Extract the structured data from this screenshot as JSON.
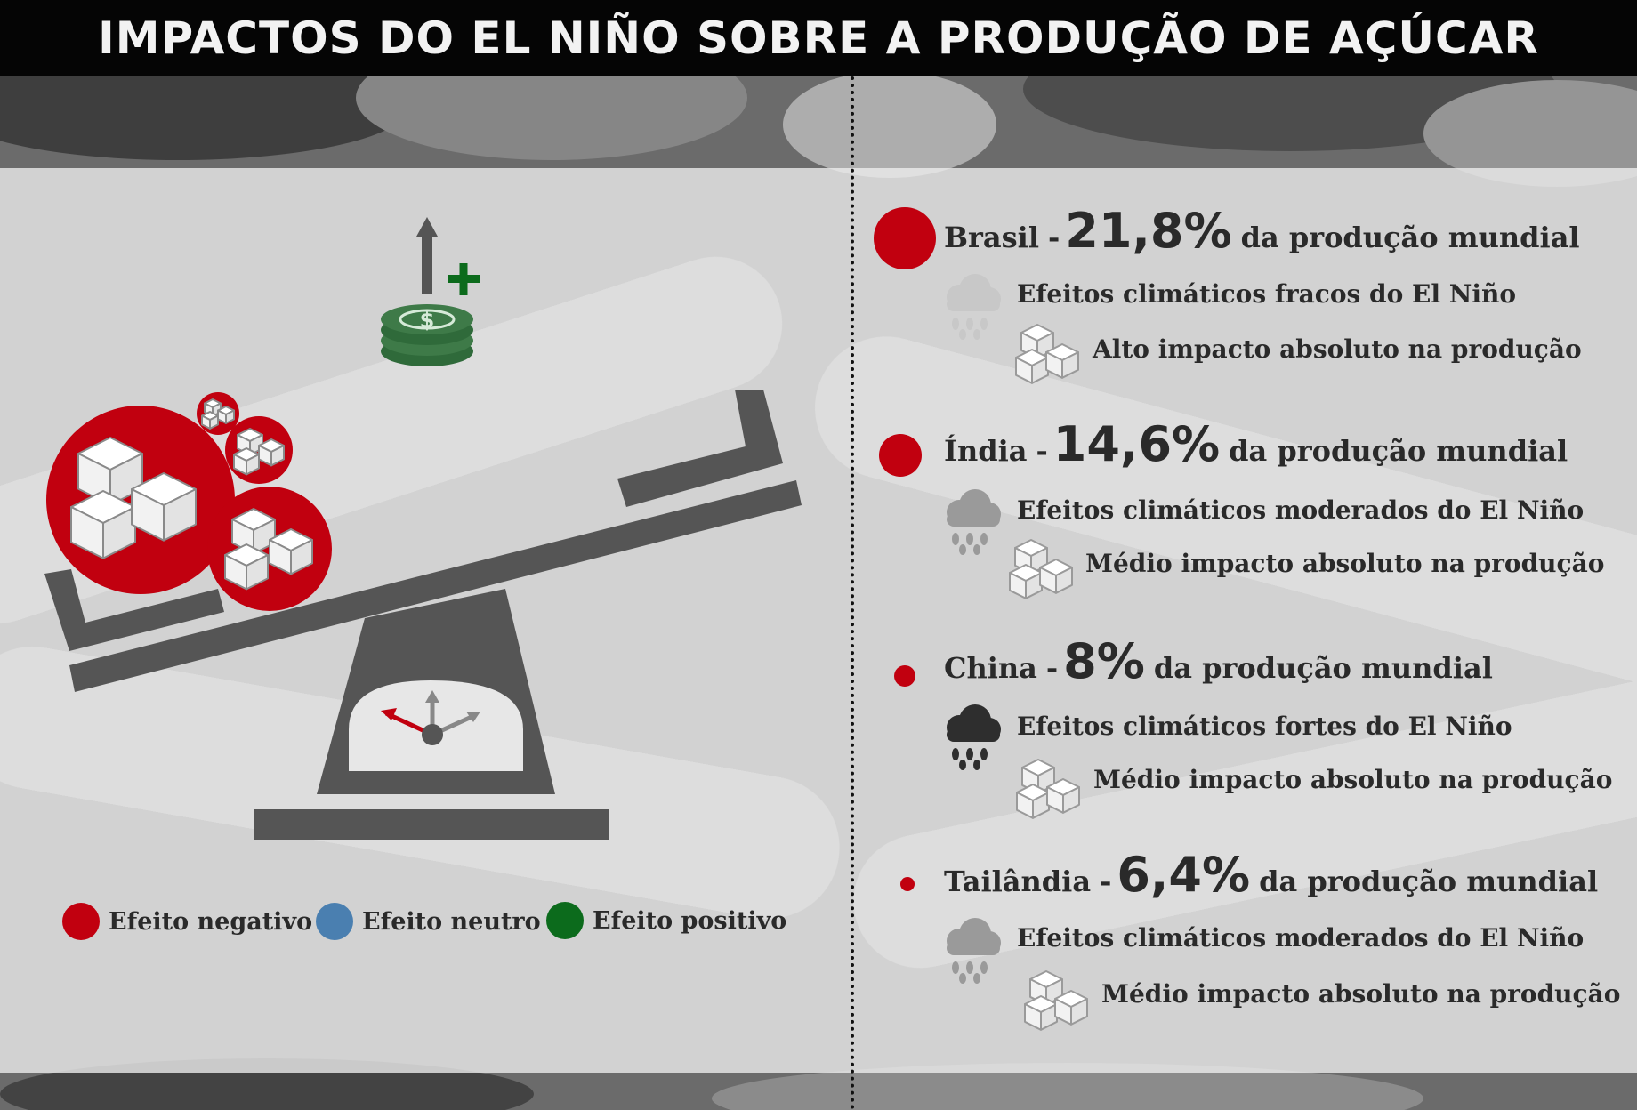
{
  "title": "IMPACTOS DO EL NIÑO SOBRE A PRODUÇÃO DE AÇÚCAR",
  "colors": {
    "negative": "#c1000f",
    "neutral": "#4a7fb0",
    "positive": "#0c6b1c",
    "dark": "#555555"
  },
  "legend": [
    {
      "label": "Efeito negativo",
      "color": "#c1000f"
    },
    {
      "label": "Efeito neutro",
      "color": "#4a7fb0"
    },
    {
      "label": "Efeito positivo",
      "color": "#0c6b1c"
    }
  ],
  "scale_icons": [
    "money-coins-icon",
    "arrow-up-icon",
    "plus-icon",
    "sugar-cubes-icon",
    "gauge-icon"
  ],
  "countries": [
    {
      "name": "Brasil",
      "separator": "-",
      "share": "21,8%",
      "share_suffix": "da produção mundial",
      "climate": "Efeitos climáticos fracos do El Niño",
      "climate_strength": "fraco",
      "impact": "Alto impacto absoluto na produção"
    },
    {
      "name": "Índia",
      "separator": "-",
      "share": "14,6%",
      "share_suffix": "da produção mundial",
      "climate": "Efeitos climáticos moderados do El Niño",
      "climate_strength": "moderado",
      "impact": "Médio impacto absoluto na produção"
    },
    {
      "name": "China",
      "separator": "-",
      "share": "8%",
      "share_suffix": "da produção mundial",
      "climate": "Efeitos climáticos fortes do El Niño",
      "climate_strength": "forte",
      "impact": "Médio impacto absoluto na produção"
    },
    {
      "name": "Tailândia",
      "separator": "-",
      "share": "6,4%",
      "share_suffix": "da produção mundial",
      "climate": "Efeitos climáticos moderados do El Niño",
      "climate_strength": "moderado",
      "impact": "Médio impacto absoluto na produção"
    }
  ]
}
